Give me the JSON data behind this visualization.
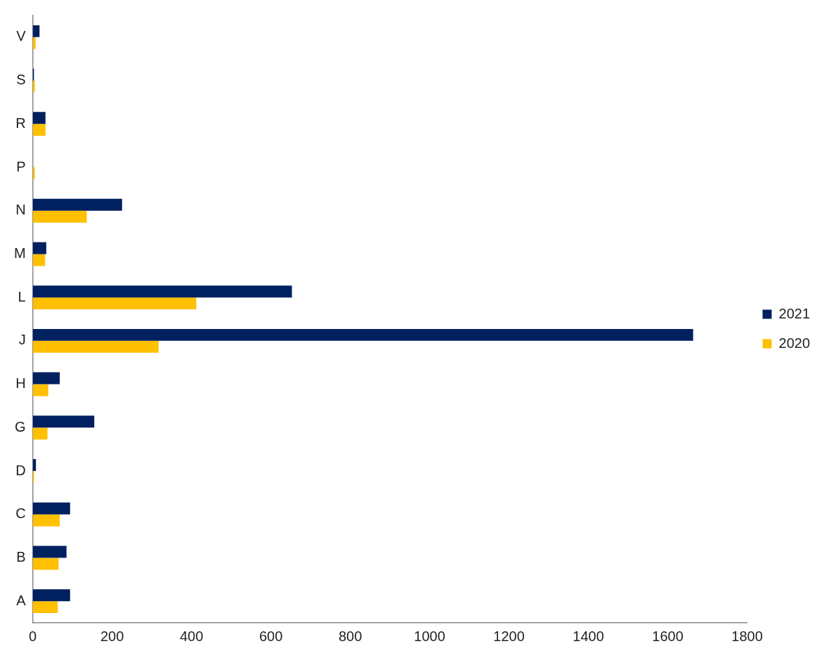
{
  "chart_data": {
    "type": "bar",
    "orientation": "horizontal",
    "categories": [
      "V",
      "S",
      "R",
      "P",
      "N",
      "M",
      "L",
      "J",
      "H",
      "G",
      "D",
      "C",
      "B",
      "A"
    ],
    "series": [
      {
        "name": "2021",
        "color": "#002060",
        "values": [
          17,
          3,
          32,
          0,
          225,
          34,
          653,
          1664,
          68,
          155,
          8,
          94,
          85,
          94
        ]
      },
      {
        "name": "2020",
        "color": "#ffc000",
        "values": [
          7,
          5,
          32,
          5,
          136,
          31,
          412,
          317,
          39,
          37,
          3,
          68,
          65,
          63
        ]
      }
    ],
    "xlim": [
      0,
      1800
    ],
    "xticks": [
      0,
      200,
      400,
      600,
      800,
      1000,
      1200,
      1400,
      1600,
      1800
    ],
    "grid": false,
    "legend": "right"
  }
}
